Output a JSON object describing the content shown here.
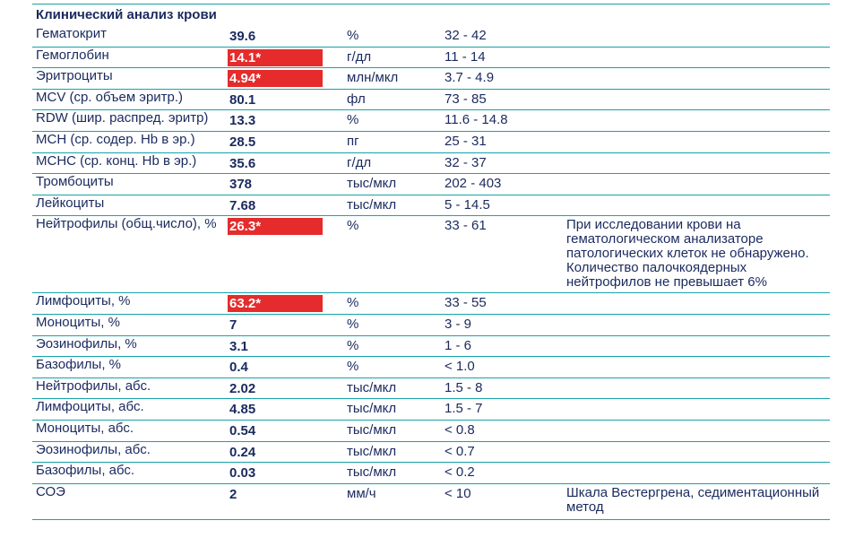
{
  "section_title": "Клинический анализ крови",
  "flag_color": "#e52b2b",
  "line_color": "#16a3a8",
  "text_color": "#1a2a5e",
  "rows": [
    {
      "name": "Гематокрит",
      "value": "39.6",
      "flag": false,
      "unit": "%",
      "ref": "32 - 42",
      "note": ""
    },
    {
      "name": "Гемоглобин",
      "value": "14.1*",
      "flag": true,
      "unit": "г/дл",
      "ref": "11 - 14",
      "note": ""
    },
    {
      "name": "Эритроциты",
      "value": "4.94*",
      "flag": true,
      "unit": "млн/мкл",
      "ref": "3.7 - 4.9",
      "note": ""
    },
    {
      "name": "MCV (ср. объем эритр.)",
      "value": "80.1",
      "flag": false,
      "unit": "фл",
      "ref": "73 - 85",
      "note": ""
    },
    {
      "name": "RDW (шир. распред. эритр)",
      "value": "13.3",
      "flag": false,
      "unit": "%",
      "ref": "11.6 - 14.8",
      "note": ""
    },
    {
      "name": "MCH (ср. содер. Hb в эр.)",
      "value": "28.5",
      "flag": false,
      "unit": "пг",
      "ref": "25 - 31",
      "note": ""
    },
    {
      "name": "MCHC (ср. конц. Hb в эр.)",
      "value": "35.6",
      "flag": false,
      "unit": "г/дл",
      "ref": "32 - 37",
      "note": ""
    },
    {
      "name": "Тромбоциты",
      "value": "378",
      "flag": false,
      "unit": "тыс/мкл",
      "ref": "202 - 403",
      "note": ""
    },
    {
      "name": "Лейкоциты",
      "value": "7.68",
      "flag": false,
      "unit": "тыс/мкл",
      "ref": "5 - 14.5",
      "note": ""
    },
    {
      "name": "Нейтрофилы (общ.число), %",
      "value": "26.3*",
      "flag": true,
      "unit": "%",
      "ref": "33 - 61",
      "note": "При исследовании крови на гематологическом анализаторе патологических клеток не обнаружено. Количество палочкоядерных нейтрофилов не превышает 6%"
    },
    {
      "name": "Лимфоциты, %",
      "value": "63.2*",
      "flag": true,
      "unit": "%",
      "ref": "33 - 55",
      "note": ""
    },
    {
      "name": "Моноциты, %",
      "value": "7",
      "flag": false,
      "unit": "%",
      "ref": "3 - 9",
      "note": ""
    },
    {
      "name": "Эозинофилы, %",
      "value": "3.1",
      "flag": false,
      "unit": "%",
      "ref": "1 - 6",
      "note": ""
    },
    {
      "name": "Базофилы, %",
      "value": "0.4",
      "flag": false,
      "unit": "%",
      "ref": "< 1.0",
      "note": ""
    },
    {
      "name": "Нейтрофилы, абс.",
      "value": "2.02",
      "flag": false,
      "unit": "тыс/мкл",
      "ref": "1.5 - 8",
      "note": ""
    },
    {
      "name": "Лимфоциты, абс.",
      "value": "4.85",
      "flag": false,
      "unit": "тыс/мкл",
      "ref": "1.5 - 7",
      "note": ""
    },
    {
      "name": "Моноциты, абс.",
      "value": "0.54",
      "flag": false,
      "unit": "тыс/мкл",
      "ref": "< 0.8",
      "note": ""
    },
    {
      "name": "Эозинофилы, абс.",
      "value": "0.24",
      "flag": false,
      "unit": "тыс/мкл",
      "ref": "< 0.7",
      "note": ""
    },
    {
      "name": "Базофилы, абс.",
      "value": "0.03",
      "flag": false,
      "unit": "тыс/мкл",
      "ref": "< 0.2",
      "note": ""
    },
    {
      "name": "СОЭ",
      "value": "2",
      "flag": false,
      "unit": "мм/ч",
      "ref": "< 10",
      "note": "Шкала Вестергрена, седиментационный метод"
    }
  ]
}
